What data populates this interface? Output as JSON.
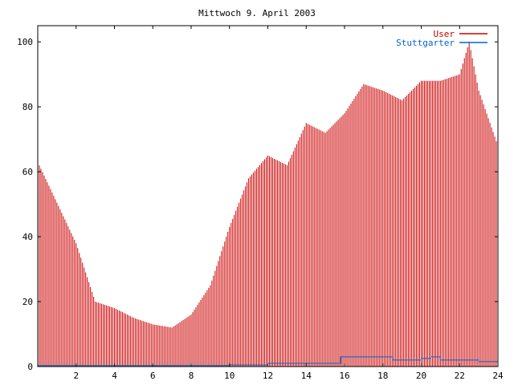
{
  "chart_data": {
    "type": "bar",
    "title": "Mittwoch 9. April 2003",
    "xlabel": "",
    "ylabel": "",
    "xlim": [
      0,
      24
    ],
    "ylim": [
      0,
      105
    ],
    "grid": false,
    "legend_position": "top-right",
    "x_ticks": [
      2,
      4,
      6,
      8,
      10,
      12,
      14,
      16,
      18,
      20,
      22,
      24
    ],
    "y_ticks": [
      0,
      20,
      40,
      60,
      80,
      100
    ],
    "series": [
      {
        "name": "User",
        "style": "impulses",
        "color": "#cc0000",
        "x": [
          0,
          2,
          3,
          4,
          5,
          6,
          7,
          8,
          9,
          10,
          11,
          12,
          13,
          14,
          15,
          16,
          17,
          18,
          19,
          20,
          21,
          22,
          22.5,
          23,
          24
        ],
        "values": [
          63,
          38,
          20,
          18,
          15,
          13,
          12,
          16,
          25,
          43,
          58,
          65,
          62,
          75,
          72,
          78,
          87,
          85,
          82,
          88,
          88,
          90,
          100,
          85,
          68
        ]
      },
      {
        "name": "Stuttgarter",
        "style": "steps",
        "color": "#0066cc",
        "x": [
          0,
          10,
          12,
          15.8,
          18.5,
          20,
          20.5,
          21,
          23,
          24
        ],
        "values": [
          0.3,
          0.5,
          1,
          3,
          2,
          2.5,
          3,
          2,
          1.5,
          1.5
        ]
      }
    ]
  }
}
